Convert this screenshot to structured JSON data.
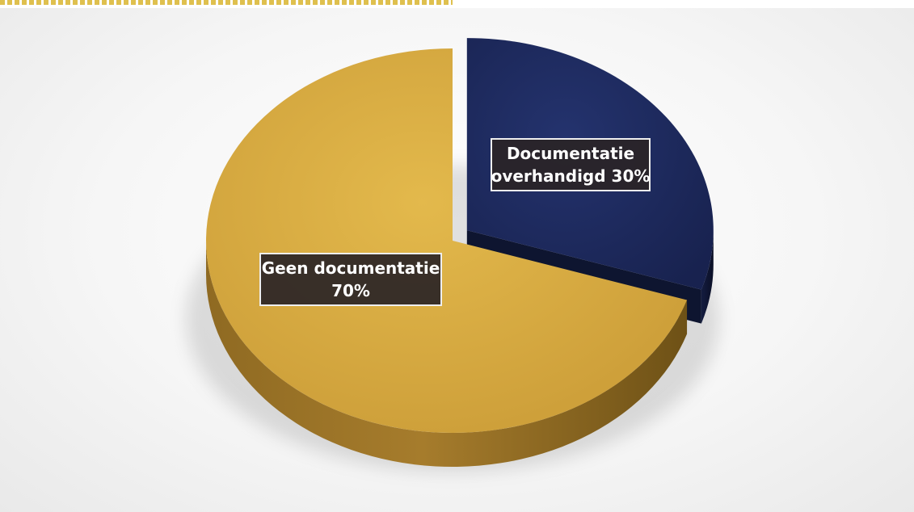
{
  "chart_data": {
    "type": "pie",
    "style": "3d-exploded",
    "slices": [
      {
        "label_lines": [
          "Geen documentatie",
          "70%"
        ],
        "value": 70,
        "color": "#C99A36",
        "side_color": "#8E6A1E"
      },
      {
        "label_lines": [
          "Documentatie",
          "overhandigd 30%"
        ],
        "value": 30,
        "color": "#1D2A5E",
        "side_color": "#0E1530",
        "exploded": true
      }
    ]
  }
}
